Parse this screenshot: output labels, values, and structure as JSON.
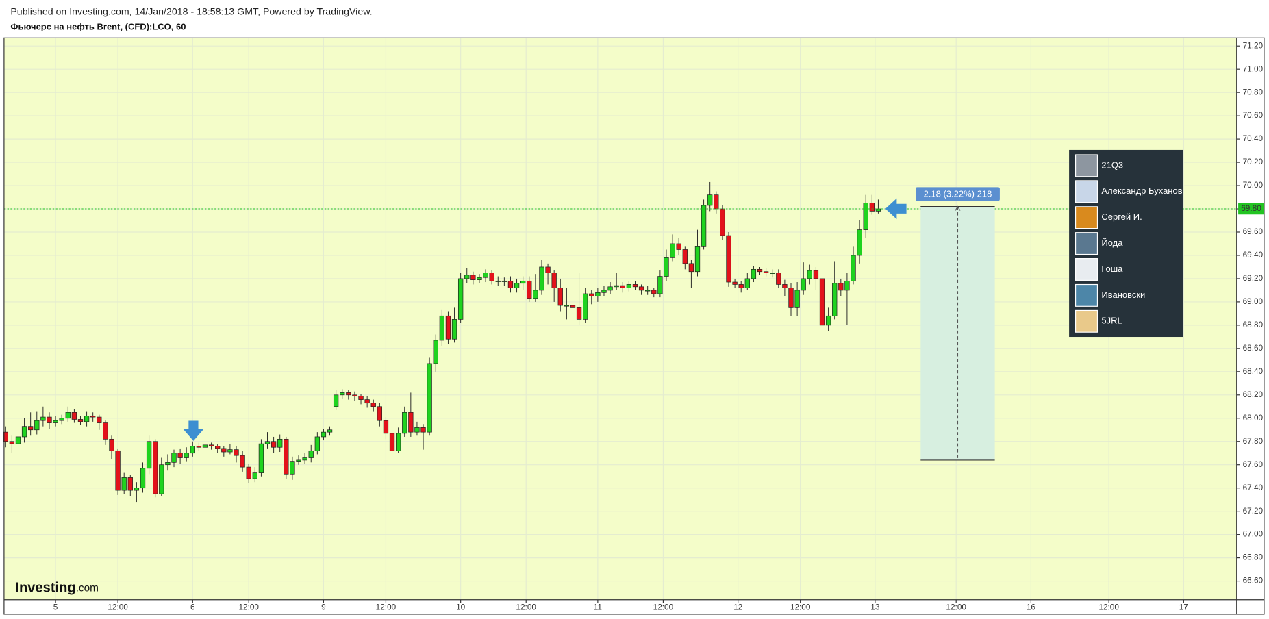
{
  "chart_data": {
    "type": "candlestick",
    "subtitle": "Published on Investing.com, 14/Jan/2018 - 18:58:13 GMT, Powered by TradingView.",
    "title": "Фьючерс на нефть Brent, (CFD):LCO, 60",
    "x": [
      0,
      1,
      2,
      3,
      4,
      5,
      6,
      7,
      8,
      9,
      10,
      11,
      12,
      13,
      14,
      15,
      16,
      17,
      18,
      19,
      20,
      21,
      22,
      23,
      24,
      25,
      26,
      27,
      28,
      29,
      30,
      31,
      32,
      33,
      34,
      35,
      36,
      37,
      38,
      39,
      40,
      41,
      42,
      43,
      44,
      45,
      46,
      47,
      48,
      49,
      50,
      51,
      52,
      53,
      54,
      55,
      56,
      57,
      58,
      59,
      60,
      61,
      62,
      63,
      64,
      65,
      66,
      67,
      68,
      69,
      70,
      71,
      72,
      73,
      74,
      75,
      76,
      77,
      78,
      79,
      80,
      81,
      82,
      83,
      84,
      85,
      86,
      87,
      88,
      89,
      90,
      91,
      92,
      93,
      94,
      95,
      96,
      97,
      98,
      99,
      100,
      101,
      102,
      103,
      104,
      105,
      106,
      107,
      108,
      109,
      110,
      111,
      112,
      113,
      114,
      115,
      116,
      117,
      118,
      119,
      120,
      121,
      122,
      123,
      124,
      125,
      126,
      127,
      128,
      129,
      130,
      131,
      132,
      133,
      134,
      135,
      136,
      137,
      138,
      139,
      140
    ],
    "open": [
      67.88,
      67.8,
      67.78,
      67.84,
      67.93,
      67.9,
      67.98,
      68.01,
      67.96,
      67.98,
      68.0,
      68.05,
      67.99,
      67.97,
      68.02,
      68.01,
      67.96,
      67.82,
      67.72,
      67.38,
      67.49,
      67.38,
      67.4,
      67.57,
      67.8,
      67.35,
      67.6,
      67.62,
      67.7,
      67.66,
      67.7,
      67.76,
      67.75,
      67.77,
      67.76,
      67.74,
      67.71,
      67.73,
      67.68,
      67.58,
      67.48,
      67.53,
      67.78,
      67.8,
      67.75,
      67.82,
      67.52,
      67.63,
      67.64,
      67.66,
      67.72,
      67.84,
      67.88,
      68.1,
      68.2,
      68.22,
      68.2,
      68.19,
      68.16,
      68.13,
      68.1,
      67.98,
      67.87,
      67.72,
      67.87,
      68.05,
      67.88,
      67.92,
      67.88,
      68.47,
      68.67,
      68.88,
      68.68,
      68.85,
      69.2,
      69.23,
      69.19,
      69.21,
      69.25,
      69.18,
      69.18,
      69.18,
      69.12,
      69.16,
      69.18,
      69.03,
      69.1,
      69.3,
      69.25,
      69.12,
      68.97,
      68.97,
      68.95,
      68.85,
      69.07,
      69.05,
      69.08,
      69.1,
      69.13,
      69.14,
      69.12,
      69.15,
      69.13,
      69.1,
      69.1,
      69.07,
      69.22,
      69.38,
      69.5,
      69.45,
      69.33,
      69.26,
      69.48,
      69.83,
      69.92,
      69.8,
      69.57,
      69.17,
      69.15,
      69.12,
      69.2,
      69.28,
      69.26,
      69.25,
      69.25,
      69.15,
      69.12,
      68.95,
      69.1,
      69.2,
      69.27,
      69.2,
      68.8,
      68.88,
      69.16,
      69.1,
      69.18,
      69.4,
      69.62,
      69.85,
      69.78
    ],
    "high": [
      67.93,
      67.85,
      67.9,
      68.0,
      68.05,
      68.06,
      68.1,
      68.05,
      68.02,
      68.03,
      68.1,
      68.08,
      68.02,
      68.06,
      68.05,
      68.03,
      67.98,
      67.85,
      67.74,
      67.53,
      67.51,
      67.45,
      67.62,
      67.85,
      67.82,
      67.66,
      67.69,
      67.73,
      67.74,
      67.75,
      67.8,
      67.79,
      67.8,
      67.79,
      67.78,
      67.76,
      67.78,
      67.76,
      67.72,
      67.61,
      67.58,
      67.82,
      67.88,
      67.84,
      67.86,
      67.84,
      67.67,
      67.68,
      67.7,
      67.77,
      67.88,
      67.91,
      67.93,
      68.24,
      68.25,
      68.24,
      68.23,
      68.21,
      68.19,
      68.16,
      68.13,
      68.01,
      67.9,
      67.92,
      68.1,
      68.22,
      67.97,
      67.95,
      68.52,
      68.72,
      68.93,
      68.92,
      68.95,
      69.25,
      69.29,
      69.26,
      69.24,
      69.28,
      69.27,
      69.22,
      69.21,
      69.22,
      69.2,
      69.22,
      69.22,
      69.24,
      69.36,
      69.33,
      69.27,
      69.2,
      69.12,
      69.05,
      69.25,
      69.12,
      69.1,
      69.12,
      69.14,
      69.17,
      69.25,
      69.17,
      69.18,
      69.18,
      69.15,
      69.14,
      69.12,
      69.27,
      69.45,
      69.58,
      69.55,
      69.48,
      69.36,
      69.62,
      69.88,
      70.03,
      69.95,
      69.83,
      69.6,
      69.2,
      69.18,
      69.25,
      69.31,
      69.3,
      69.29,
      69.28,
      69.28,
      69.19,
      69.16,
      69.17,
      69.34,
      69.32,
      69.3,
      69.24,
      68.95,
      69.35,
      69.2,
      69.25,
      69.48,
      69.7,
      69.92,
      69.92,
      69.88
    ],
    "low": [
      67.75,
      67.7,
      67.66,
      67.79,
      67.85,
      67.86,
      67.93,
      67.91,
      67.93,
      67.95,
      67.97,
      67.96,
      67.94,
      67.93,
      67.97,
      67.9,
      67.77,
      67.65,
      67.34,
      67.35,
      67.33,
      67.28,
      67.36,
      67.52,
      67.32,
      67.33,
      67.55,
      67.58,
      67.61,
      67.63,
      67.67,
      67.72,
      67.72,
      67.73,
      67.7,
      67.67,
      67.69,
      67.62,
      67.54,
      67.44,
      67.45,
      67.5,
      67.74,
      67.7,
      67.71,
      67.48,
      67.47,
      67.6,
      67.61,
      67.62,
      67.69,
      67.81,
      67.85,
      68.07,
      68.17,
      68.16,
      68.15,
      68.12,
      68.09,
      68.06,
      67.93,
      67.82,
      67.69,
      67.7,
      67.84,
      67.84,
      67.85,
      67.73,
      67.85,
      68.4,
      68.62,
      68.64,
      68.65,
      68.82,
      69.16,
      69.15,
      69.16,
      69.17,
      69.15,
      69.14,
      69.14,
      69.08,
      69.08,
      69.1,
      69.0,
      69.0,
      69.06,
      69.15,
      69.0,
      68.92,
      68.85,
      68.9,
      68.8,
      68.82,
      68.98,
      69.0,
      69.05,
      69.07,
      69.1,
      69.08,
      69.09,
      69.1,
      69.06,
      69.06,
      69.04,
      69.04,
      69.18,
      69.35,
      69.4,
      69.28,
      69.12,
      69.22,
      69.45,
      69.78,
      69.76,
      69.53,
      69.13,
      69.12,
      69.08,
      69.1,
      69.17,
      69.23,
      69.22,
      69.21,
      69.12,
      69.05,
      68.88,
      68.88,
      69.06,
      69.15,
      69.1,
      68.63,
      68.75,
      68.85,
      69.05,
      68.8,
      69.15,
      69.33,
      69.55,
      69.75,
      69.76
    ],
    "close": [
      67.8,
      67.78,
      67.84,
      67.93,
      67.9,
      67.98,
      68.01,
      67.96,
      67.98,
      68.0,
      68.05,
      67.99,
      67.97,
      68.02,
      68.01,
      67.96,
      67.82,
      67.72,
      67.38,
      67.49,
      67.38,
      67.4,
      67.57,
      67.8,
      67.35,
      67.6,
      67.62,
      67.7,
      67.66,
      67.7,
      67.76,
      67.75,
      67.77,
      67.76,
      67.74,
      67.71,
      67.73,
      67.68,
      67.58,
      67.48,
      67.53,
      67.78,
      67.8,
      67.75,
      67.82,
      67.52,
      67.63,
      67.64,
      67.66,
      67.72,
      67.84,
      67.88,
      67.9,
      68.2,
      68.22,
      68.2,
      68.19,
      68.16,
      68.13,
      68.1,
      67.98,
      67.87,
      67.72,
      67.87,
      68.05,
      67.88,
      67.92,
      67.88,
      68.47,
      68.67,
      68.88,
      68.68,
      68.85,
      69.2,
      69.23,
      69.19,
      69.21,
      69.25,
      69.18,
      69.18,
      69.18,
      69.12,
      69.16,
      69.18,
      69.03,
      69.1,
      69.3,
      69.25,
      69.12,
      68.97,
      68.97,
      68.95,
      68.85,
      69.07,
      69.05,
      69.08,
      69.1,
      69.13,
      69.14,
      69.12,
      69.15,
      69.13,
      69.1,
      69.1,
      69.07,
      69.22,
      69.38,
      69.5,
      69.45,
      69.33,
      69.26,
      69.48,
      69.83,
      69.92,
      69.8,
      69.57,
      69.17,
      69.15,
      69.12,
      69.2,
      69.28,
      69.26,
      69.25,
      69.25,
      69.15,
      69.12,
      68.95,
      69.1,
      69.2,
      69.27,
      69.2,
      68.8,
      68.88,
      69.16,
      69.1,
      69.18,
      69.4,
      69.62,
      69.85,
      69.78,
      69.8
    ],
    "up_color": "#1fd31f",
    "down_color": "#e3121b",
    "xlim": [
      -0.26,
      197.5
    ],
    "xticks": [
      {
        "value": 8,
        "label": "5"
      },
      {
        "value": 18,
        "label": "12:00"
      },
      {
        "value": 30,
        "label": "6"
      },
      {
        "value": 39,
        "label": "12:00"
      },
      {
        "value": 51,
        "label": "9"
      },
      {
        "value": 61,
        "label": "12:00"
      },
      {
        "value": 73,
        "label": "10"
      },
      {
        "value": 83.5,
        "label": "12:00"
      },
      {
        "value": 95,
        "label": "11"
      },
      {
        "value": 105.5,
        "label": "12:00"
      },
      {
        "value": 117.5,
        "label": "12"
      },
      {
        "value": 127.5,
        "label": "12:00"
      },
      {
        "value": 139.5,
        "label": "13"
      },
      {
        "value": 152.5,
        "label": "12:00"
      },
      {
        "value": 164.5,
        "label": "16"
      },
      {
        "value": 177,
        "label": "12:00"
      },
      {
        "value": 189,
        "label": "17"
      }
    ],
    "ylim": [
      66.44,
      71.27
    ],
    "yticks": [
      {
        "value": 66.6,
        "label": "66.60"
      },
      {
        "value": 66.8,
        "label": "66.80"
      },
      {
        "value": 67.0,
        "label": "67.00"
      },
      {
        "value": 67.2,
        "label": "67.20"
      },
      {
        "value": 67.4,
        "label": "67.40"
      },
      {
        "value": 67.6,
        "label": "67.60"
      },
      {
        "value": 67.8,
        "label": "67.80"
      },
      {
        "value": 68.0,
        "label": "68.00"
      },
      {
        "value": 68.2,
        "label": "68.20"
      },
      {
        "value": 68.4,
        "label": "68.40"
      },
      {
        "value": 68.6,
        "label": "68.60"
      },
      {
        "value": 68.8,
        "label": "68.80"
      },
      {
        "value": 69.0,
        "label": "69.00"
      },
      {
        "value": 69.2,
        "label": "69.20"
      },
      {
        "value": 69.4,
        "label": "69.40"
      },
      {
        "value": 69.6,
        "label": "69.60"
      },
      {
        "value": 69.8,
        "label": "69.80"
      },
      {
        "value": 70.0,
        "label": "70.00"
      },
      {
        "value": 70.2,
        "label": "70.20"
      },
      {
        "value": 70.4,
        "label": "70.40"
      },
      {
        "value": 70.6,
        "label": "70.60"
      },
      {
        "value": 70.8,
        "label": "70.80"
      },
      {
        "value": 71.0,
        "label": "71.00"
      },
      {
        "value": 71.2,
        "label": "71.20"
      }
    ],
    "grid": true,
    "last_price": {
      "value": 69.8,
      "label": "69.80",
      "color": "#22c422"
    },
    "range": {
      "label": "2.18 (3.22%) 218",
      "top": 69.82,
      "bottom": 67.64,
      "x": [
        146.8,
        158.7
      ]
    },
    "logo": {
      "brand": "Investing",
      "suffix": ".com"
    }
  },
  "users": [
    "21Q3",
    "Александр Буханов",
    "Сергей И.",
    "Йода",
    "Гоша",
    "Ивановски",
    "5JRL"
  ]
}
